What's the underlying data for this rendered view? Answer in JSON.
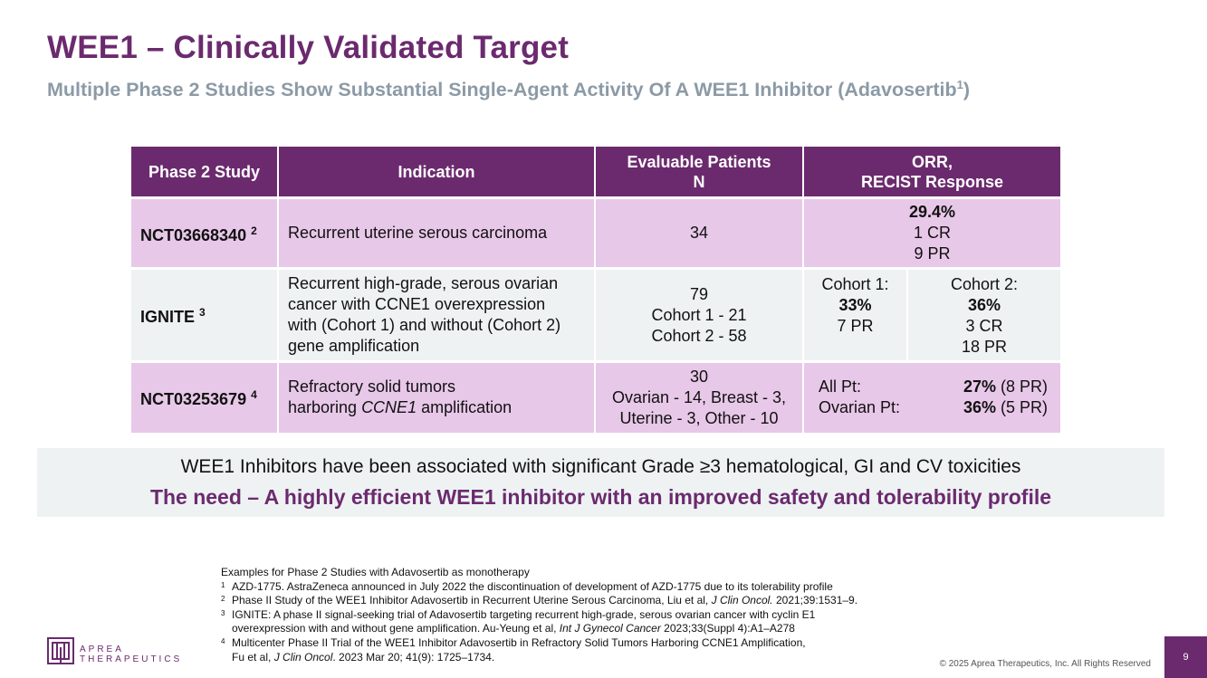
{
  "title": "WEE1 – Clinically Validated Target",
  "subtitle": {
    "text": "Multiple Phase 2 Studies Show Substantial Single-Agent Activity Of A WEE1 Inhibitor (Adavosertib",
    "sup": "1",
    "close": ")"
  },
  "table": {
    "headers": {
      "study": "Phase 2 Study",
      "indication": "Indication",
      "patients_line1": "Evaluable Patients",
      "patients_line2": "N",
      "orr_line1": "ORR,",
      "orr_line2": "RECIST Response"
    },
    "rows": [
      {
        "study": "NCT03668340",
        "ref": "2",
        "indication": "Recurrent uterine serous carcinoma",
        "patients": "34",
        "orr": {
          "headline": "29.4%",
          "line2": "1 CR",
          "line3": "9 PR"
        }
      },
      {
        "study": "IGNITE",
        "ref": "3",
        "indication_lines": [
          "Recurrent high-grade, serous ovarian",
          "cancer with CCNE1 overexpression",
          "with (Cohort 1) and without (Cohort 2)",
          "gene amplification"
        ],
        "patients_lines": [
          "79",
          "Cohort 1 - 21",
          "Cohort 2 - 58"
        ],
        "cohort1": {
          "label": "Cohort 1:",
          "value": "33%",
          "line3": "7 PR"
        },
        "cohort2": {
          "label": "Cohort 2:",
          "value": "36%",
          "line3": "3 CR",
          "line4": "18 PR"
        }
      },
      {
        "study": "NCT03253679",
        "ref": "4",
        "indication_line1": "Refractory solid tumors",
        "indication_line2_prefix": "harboring ",
        "indication_line2_italic": "CCNE1",
        "indication_line2_suffix": " amplification",
        "patients_lines": [
          "30",
          "Ovarian - 14, Breast - 3,",
          "Uterine - 3, Other - 10"
        ],
        "orr_rows": [
          {
            "label": "All Pt:",
            "value": "27%",
            "detail": " (8 PR)"
          },
          {
            "label": "Ovarian Pt:",
            "value": "36%",
            "detail": " (5 PR)"
          }
        ]
      }
    ]
  },
  "callout": {
    "line1": "WEE1 Inhibitors have been associated with significant Grade ≥3 hematological, GI and CV toxicities",
    "line2": "The need – A highly efficient WEE1 inhibitor with an improved safety and tolerability profile"
  },
  "footnotes": {
    "intro": "Examples for Phase 2 Studies with Adavosertib as monotherapy",
    "items": [
      {
        "num": "1",
        "text": "AZD-1775. AstraZeneca announced in July 2022 the discontinuation of development of AZD-1775 due to its tolerability profile"
      },
      {
        "num": "2",
        "pre": "Phase II Study of the WEE1 Inhibitor Adavosertib in Recurrent Uterine Serous Carcinoma, Liu et al, ",
        "italic": "J Clin Oncol.",
        "post": " 2021;39:1531–9."
      },
      {
        "num": "3",
        "pre": "IGNITE: A phase II signal-seeking trial of Adavosertib targeting recurrent high-grade, serous ovarian cancer with cyclin E1",
        "pre2": "overexpression with and without gene amplification. Au-Yeung et al, ",
        "italic": "Int J Gynecol Cancer",
        "post": " 2023;33(Suppl 4):A1–A278"
      },
      {
        "num": "4",
        "pre": "Multicenter Phase II Trial of the WEE1 Inhibitor Adavosertib in Refractory Solid Tumors Harboring CCNE1 Amplification,",
        "pre2": "Fu et al, ",
        "italic": "J Clin Oncol",
        "post": ". 2023 Mar 20; 41(9): 1725–1734."
      }
    ]
  },
  "logo": {
    "line1": "APREA",
    "line2": "THERAPEUTICS"
  },
  "copyright": "© 2025 Aprea Therapeutics, Inc. All Rights Reserved",
  "page_number": "9",
  "colors": {
    "brand_purple": "#6b2a6e",
    "row_pink": "#e8c8e8",
    "row_grey": "#eef2f3",
    "subtitle_grey": "#8c9aa6"
  }
}
